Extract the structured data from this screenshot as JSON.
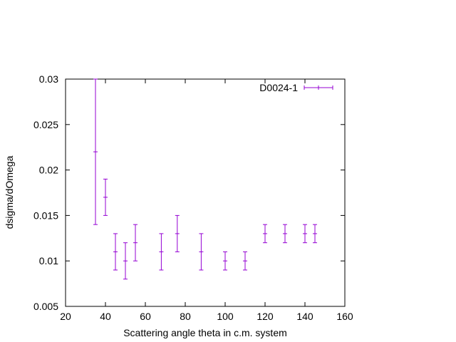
{
  "chart_data": {
    "type": "scatter",
    "xlabel": "Scattering angle theta in c.m. system",
    "ylabel": "dsigma/dOmega",
    "xlim": [
      20,
      160
    ],
    "ylim": [
      0.005,
      0.03
    ],
    "xticks": [
      20,
      40,
      60,
      80,
      100,
      120,
      140,
      160
    ],
    "xtick_labels": [
      "20",
      "40",
      "60",
      "80",
      "100",
      "120",
      "140",
      "160"
    ],
    "yticks": [
      0.005,
      0.01,
      0.015,
      0.02,
      0.025,
      0.03
    ],
    "ytick_labels": [
      "0.005",
      "0.01",
      "0.015",
      "0.02",
      "0.025",
      "0.03"
    ],
    "grid": false,
    "legend_position": "top-right",
    "series": [
      {
        "name": "D0024-1",
        "color": "#9400d3",
        "x": [
          35,
          40,
          45,
          50,
          55,
          68,
          76,
          88,
          100,
          110,
          120,
          130,
          140,
          145
        ],
        "y": [
          0.022,
          0.017,
          0.011,
          0.01,
          0.012,
          0.011,
          0.013,
          0.011,
          0.01,
          0.01,
          0.013,
          0.013,
          0.013,
          0.013
        ],
        "yerr": [
          0.008,
          0.002,
          0.002,
          0.002,
          0.002,
          0.002,
          0.002,
          0.002,
          0.001,
          0.001,
          0.001,
          0.001,
          0.001,
          0.001
        ]
      }
    ]
  }
}
